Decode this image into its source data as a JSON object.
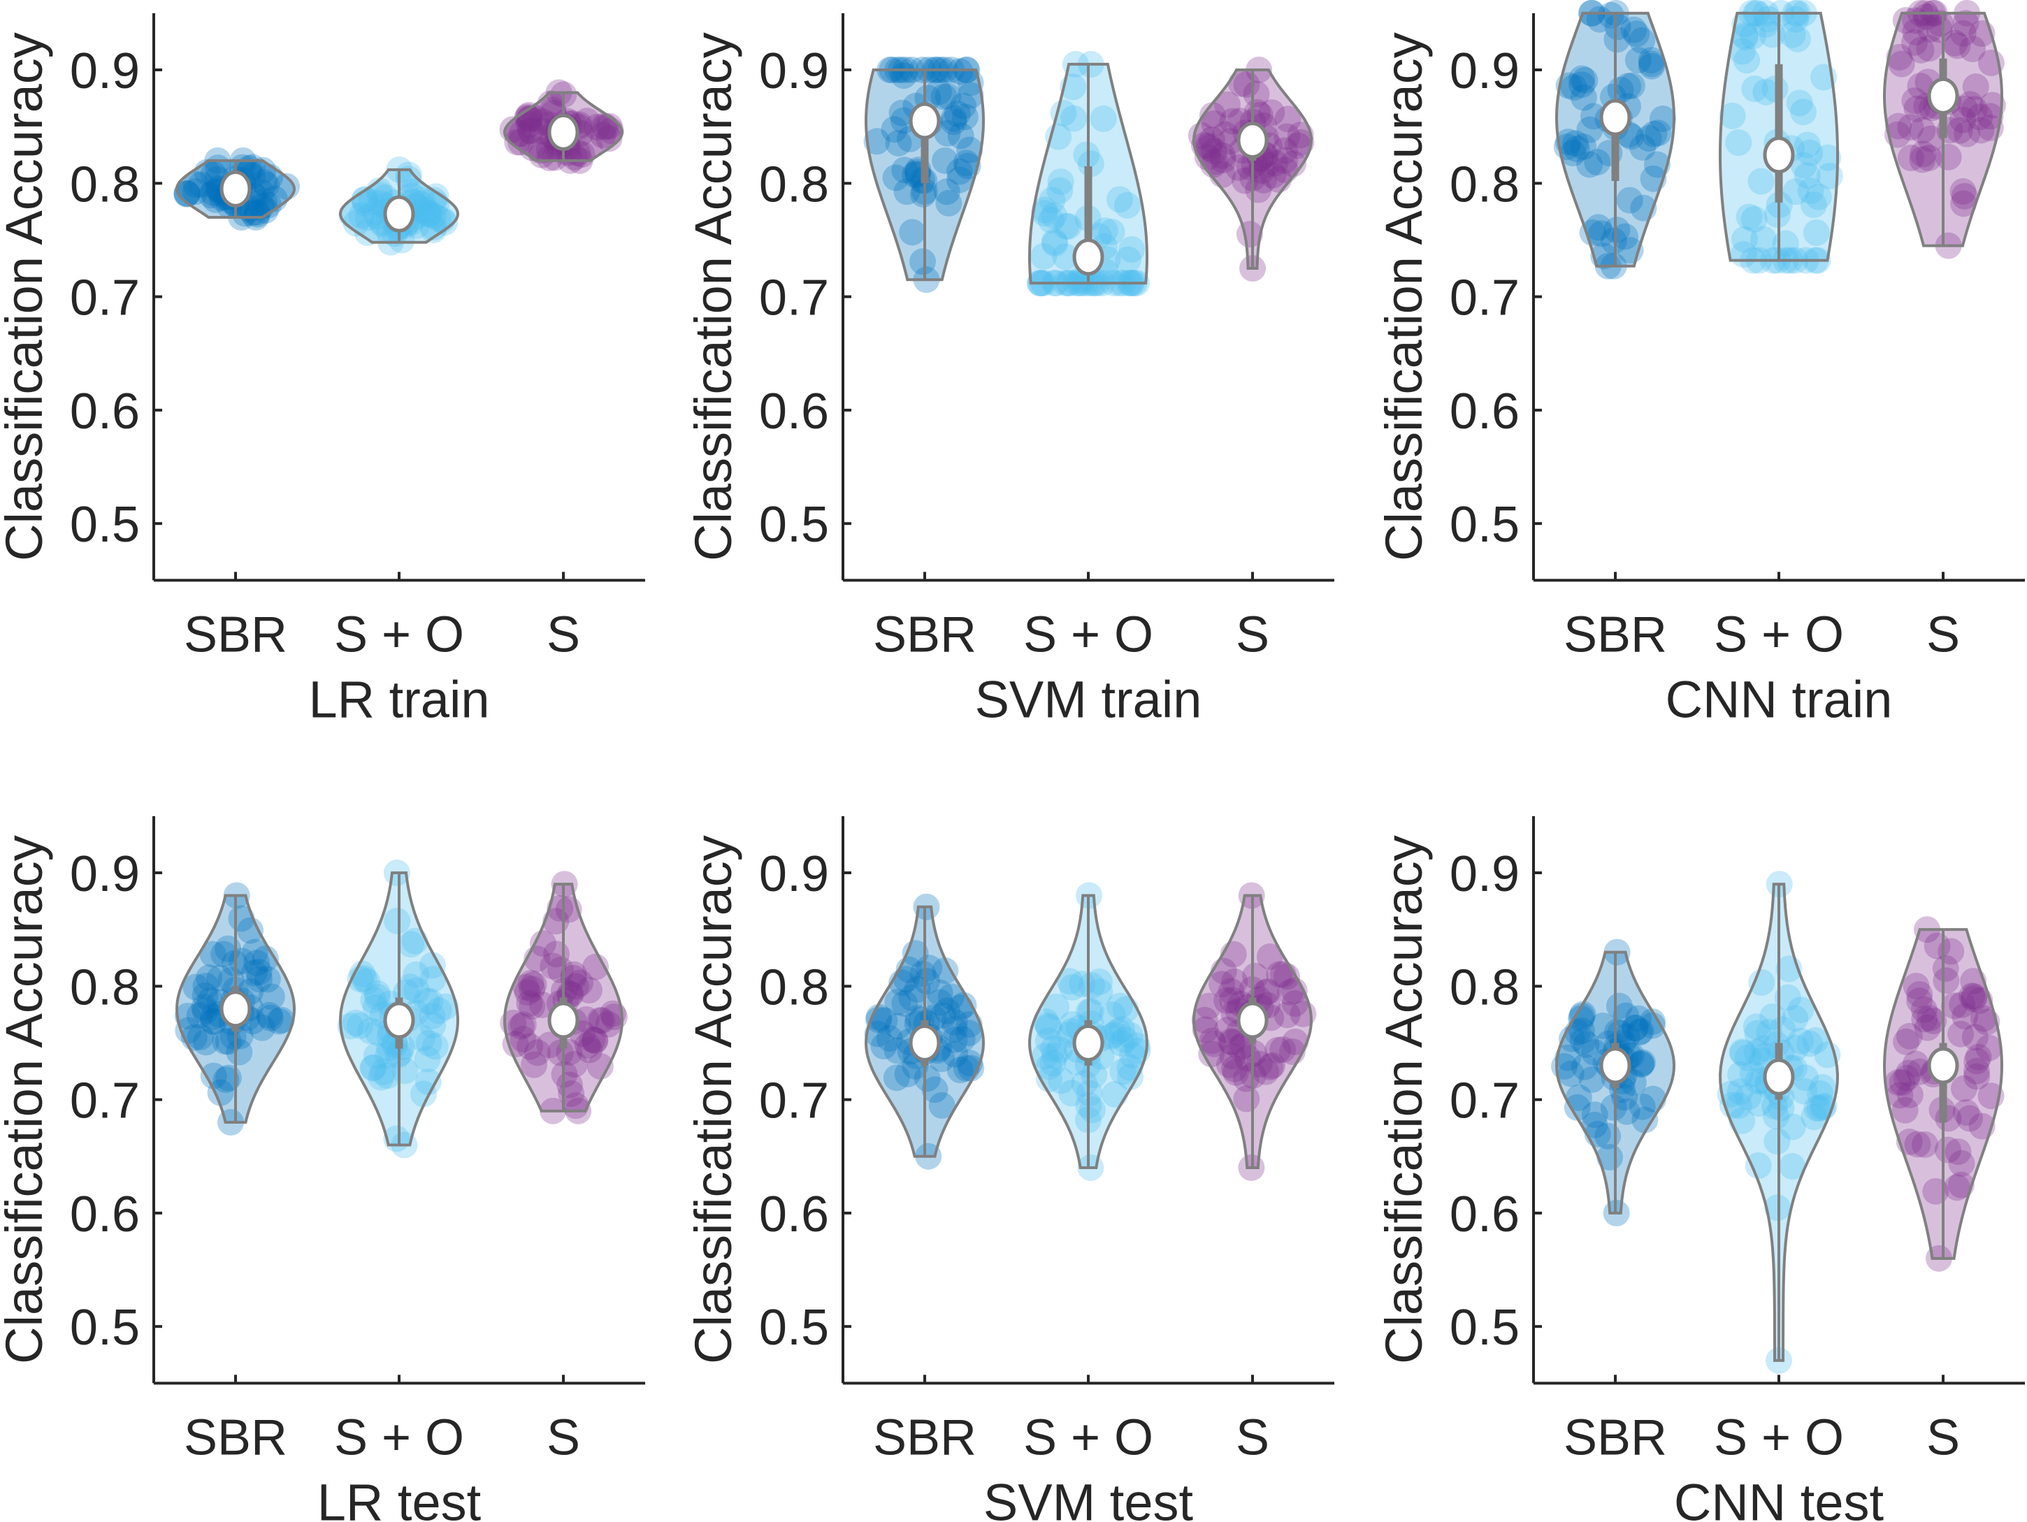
{
  "chart_data": [
    {
      "type": "violin",
      "xlabel": "LR train",
      "ylabel": "Classification Accuracy",
      "ylim": [
        0.45,
        0.95
      ],
      "yticks": [
        0.5,
        0.6,
        0.7,
        0.8,
        0.9
      ],
      "categories": [
        "SBR",
        "S + O",
        "S"
      ],
      "groups": [
        {
          "median": 0.795,
          "q1": 0.787,
          "q3": 0.803,
          "min": 0.77,
          "max": 0.82
        },
        {
          "median": 0.773,
          "q1": 0.765,
          "q3": 0.781,
          "min": 0.748,
          "max": 0.812
        },
        {
          "median": 0.845,
          "q1": 0.837,
          "q3": 0.853,
          "min": 0.82,
          "max": 0.88
        }
      ]
    },
    {
      "type": "violin",
      "xlabel": "SVM train",
      "ylabel": "Classification Accuracy",
      "ylim": [
        0.45,
        0.95
      ],
      "yticks": [
        0.5,
        0.6,
        0.7,
        0.8,
        0.9
      ],
      "categories": [
        "SBR",
        "S + O",
        "S"
      ],
      "groups": [
        {
          "median": 0.855,
          "q1": 0.8,
          "q3": 0.87,
          "min": 0.715,
          "max": 0.9
        },
        {
          "median": 0.735,
          "q1": 0.725,
          "q3": 0.815,
          "min": 0.712,
          "max": 0.905
        },
        {
          "median": 0.838,
          "q1": 0.82,
          "q3": 0.85,
          "min": 0.725,
          "max": 0.9
        }
      ]
    },
    {
      "type": "violin",
      "xlabel": "CNN train",
      "ylabel": "Classification Accuracy",
      "ylim": [
        0.45,
        0.95
      ],
      "yticks": [
        0.5,
        0.6,
        0.7,
        0.8,
        0.9
      ],
      "categories": [
        "SBR",
        "S + O",
        "S"
      ],
      "groups": [
        {
          "median": 0.858,
          "q1": 0.802,
          "q3": 0.87,
          "min": 0.727,
          "max": 0.95
        },
        {
          "median": 0.825,
          "q1": 0.783,
          "q3": 0.905,
          "min": 0.732,
          "max": 0.95
        },
        {
          "median": 0.877,
          "q1": 0.84,
          "q3": 0.91,
          "min": 0.745,
          "max": 0.95
        }
      ]
    },
    {
      "type": "violin",
      "xlabel": "LR test",
      "ylabel": "Classification Accuracy",
      "ylim": [
        0.45,
        0.95
      ],
      "yticks": [
        0.5,
        0.6,
        0.7,
        0.8,
        0.9
      ],
      "categories": [
        "SBR",
        "S + O",
        "S"
      ],
      "groups": [
        {
          "median": 0.78,
          "q1": 0.76,
          "q3": 0.8,
          "min": 0.68,
          "max": 0.88
        },
        {
          "median": 0.77,
          "q1": 0.745,
          "q3": 0.79,
          "min": 0.66,
          "max": 0.9
        },
        {
          "median": 0.77,
          "q1": 0.745,
          "q3": 0.79,
          "min": 0.69,
          "max": 0.89
        }
      ]
    },
    {
      "type": "violin",
      "xlabel": "SVM test",
      "ylabel": "Classification Accuracy",
      "ylim": [
        0.45,
        0.95
      ],
      "yticks": [
        0.5,
        0.6,
        0.7,
        0.8,
        0.9
      ],
      "categories": [
        "SBR",
        "S + O",
        "S"
      ],
      "groups": [
        {
          "median": 0.75,
          "q1": 0.73,
          "q3": 0.77,
          "min": 0.65,
          "max": 0.87
        },
        {
          "median": 0.75,
          "q1": 0.73,
          "q3": 0.77,
          "min": 0.64,
          "max": 0.88
        },
        {
          "median": 0.77,
          "q1": 0.75,
          "q3": 0.79,
          "min": 0.64,
          "max": 0.88
        }
      ]
    },
    {
      "type": "violin",
      "xlabel": "CNN test",
      "ylabel": "Classification Accuracy",
      "ylim": [
        0.45,
        0.95
      ],
      "yticks": [
        0.5,
        0.6,
        0.7,
        0.8,
        0.9
      ],
      "categories": [
        "SBR",
        "S + O",
        "S"
      ],
      "groups": [
        {
          "median": 0.73,
          "q1": 0.71,
          "q3": 0.75,
          "min": 0.6,
          "max": 0.83
        },
        {
          "median": 0.72,
          "q1": 0.7,
          "q3": 0.75,
          "min": 0.47,
          "max": 0.89
        },
        {
          "median": 0.73,
          "q1": 0.68,
          "q3": 0.75,
          "min": 0.56,
          "max": 0.85
        }
      ]
    }
  ],
  "colors": {
    "SBR": "#0072BD",
    "S + O": "#4DBEEE",
    "S": "#7E2F8E",
    "violin_edge": "#808080",
    "axis": "#262626"
  }
}
